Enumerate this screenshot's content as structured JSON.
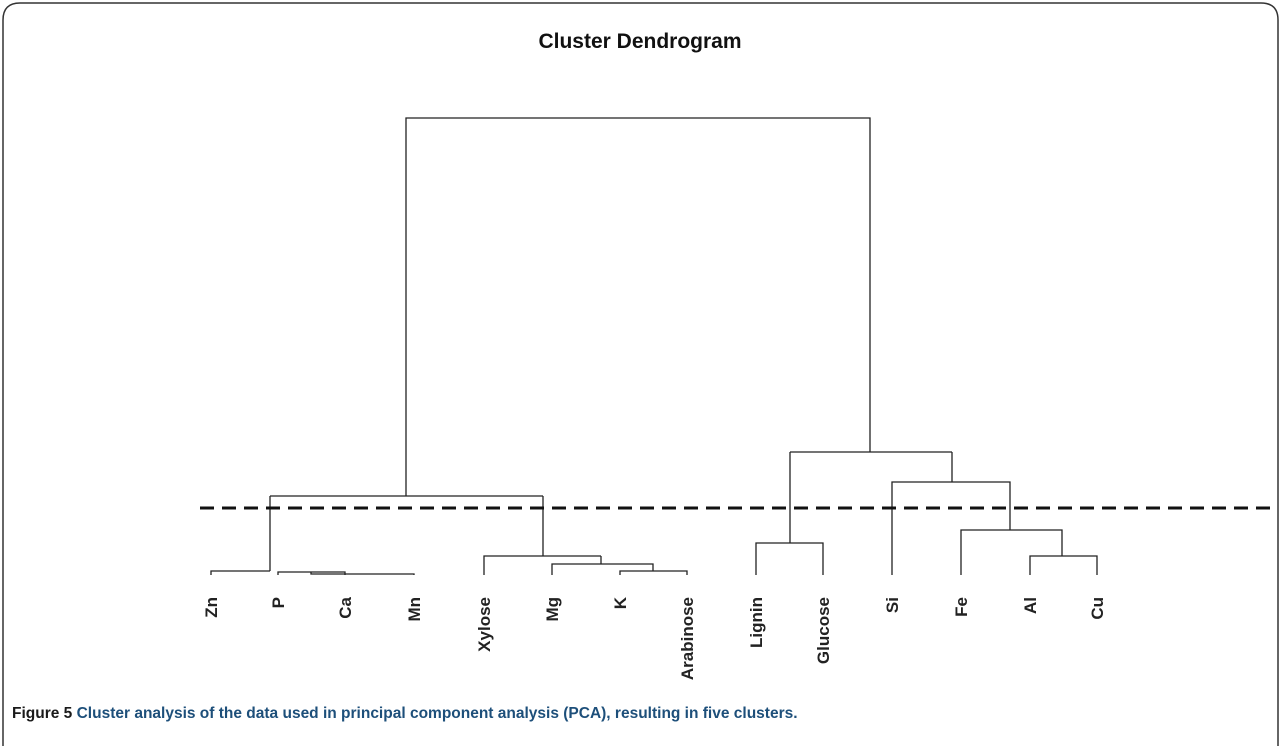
{
  "figure": {
    "title": "Cluster Dendrogram",
    "leaves": [
      "Zn",
      "P",
      "Ca",
      "Mn",
      "Xylose",
      "Mg",
      "K",
      "Arabinose",
      "Lignin",
      "Glucose",
      "Si",
      "Fe",
      "Al",
      "Cu"
    ],
    "caption": {
      "label": "Figure 5",
      "text": "Cluster analysis of the data used in principal component analysis (PCA), resulting in five clusters."
    }
  }
}
